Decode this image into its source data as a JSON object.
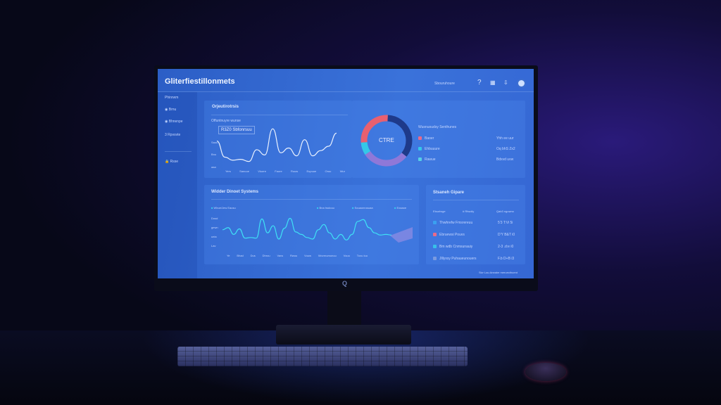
{
  "app": {
    "title": "Gliterfiestillonmets",
    "header_text": "Sbouruhoure",
    "icons": [
      "help-icon",
      "chart-icon",
      "download-icon",
      "profile-icon"
    ]
  },
  "sidebar": {
    "section": "Phinrwm",
    "items": [
      {
        "label": "Brnu",
        "icon": "circle-icon"
      },
      {
        "label": "Bhrwnpe",
        "icon": "circle-icon"
      },
      {
        "label": "Rpvsvte",
        "icon": "number-icon"
      },
      {
        "label": "Rsse",
        "icon": "lock-icon"
      }
    ]
  },
  "card1": {
    "title": "Orjeutirotrsis",
    "subtitle": "Offuntnuyre wunse",
    "badge": "R3Z0 Sbfonrsuu",
    "y_labels": [
      "Saou",
      "Bnu",
      "aaa"
    ],
    "x_labels": [
      "Yers",
      "Sanuue",
      "Vkurre",
      "Faure",
      "Ruuw",
      "Eupuue",
      "Oruu",
      "Wur"
    ],
    "series": [
      62,
      25,
      18,
      20,
      15,
      42,
      30,
      90,
      35,
      46,
      28,
      65,
      28,
      40,
      50,
      80
    ]
  },
  "donut": {
    "center_label": "CTRE",
    "segments": [
      {
        "value": 35,
        "color": "#1e3a8a"
      },
      {
        "value": 30,
        "color": "#8f78d8"
      },
      {
        "value": 8,
        "color": "#34c8e8"
      },
      {
        "value": 27,
        "color": "#e86070"
      }
    ],
    "legend_title": "Wusnuoudsy Senthunes",
    "legend": [
      {
        "label": "Baoer",
        "value": "Yhh ee uur",
        "color": "#e86a8a"
      },
      {
        "label": "Ehbuuure",
        "value": "Oq bhS Zx2",
        "color": "#34c8e8"
      },
      {
        "label": "Rawue",
        "value": "Bdxvd uvw",
        "color": "#56d0e6"
      }
    ]
  },
  "card3": {
    "title": "Widder Dinoet Systems",
    "legend": [
      {
        "label": "Wbue/Jew Eausu",
        "color": "#38d0f0"
      },
      {
        "label": "Bna hsdouu",
        "color": "#38d0f0"
      },
      {
        "label": "Souaonrusuaa",
        "color": "#38d0f0"
      },
      {
        "label": "Exaaoe",
        "color": "#38d0f0"
      }
    ],
    "y_labels": [
      "Dosd",
      "gewn",
      "ueia",
      "Lav"
    ],
    "x_labels": [
      "Ye",
      "Bhad",
      "Dus",
      "Dhrou",
      "Vavs",
      "Rwou",
      "Vuuw",
      "Wovrnumonuu",
      "Vuuu",
      "Tuvu iuu"
    ],
    "series": [
      55,
      62,
      40,
      58,
      28,
      30,
      28,
      90,
      45,
      68,
      25,
      60,
      92,
      48,
      40,
      30,
      25,
      55,
      72,
      45,
      25,
      40,
      22,
      40,
      82,
      88,
      62,
      45,
      38,
      40,
      38
    ]
  },
  "card4": {
    "title": "Stsaneh Gipare",
    "headers": [
      "Etsurlwge",
      "# Rfwoliy",
      "Qab3 nguwno"
    ],
    "rows": [
      {
        "name": "Thwhrefw Fmsrereuu",
        "value": "5'3 T:Vi 5i",
        "color": "#3aa0f0"
      },
      {
        "name": "Ebruewsi Pouvs",
        "value": "D'Y B&T i0",
        "color": "#e86a8a"
      },
      {
        "name": "Bm wdb Cnmsunauiy",
        "value": "2-3 .d:e i0",
        "color": "#38c0e8"
      },
      {
        "name": "Jlllyxsy Puhaueunouers",
        "value": "F.b D+B i3",
        "color": "#7a9ae0"
      }
    ]
  },
  "footer": "Sivr Lau Aneabe meruecthuent",
  "monitor_logo": "Q"
}
